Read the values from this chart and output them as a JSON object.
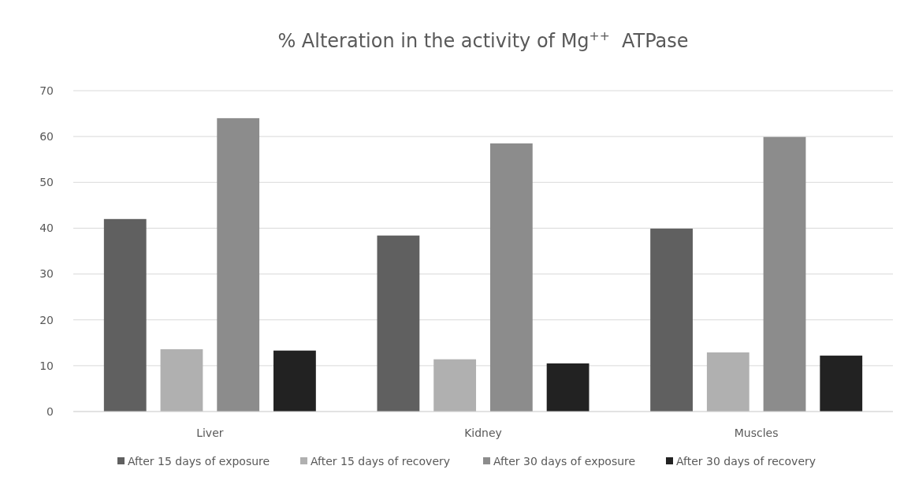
{
  "chart_data": {
    "type": "bar",
    "title": "% Alteration in the activity of Mg$^{++}$  ATPase",
    "categories": [
      "Liver",
      "Kidney",
      "Muscles"
    ],
    "series": [
      {
        "name": "After 15 days of exposure",
        "color": "#606060",
        "values": [
          42,
          38.4,
          39.9
        ]
      },
      {
        "name": "After 15 days of recovery",
        "color": "#b0b0b0",
        "values": [
          13.6,
          11.4,
          12.9
        ]
      },
      {
        "name": "After 30 days of exposure",
        "color": "#8c8c8c",
        "values": [
          64,
          58.5,
          59.9
        ]
      },
      {
        "name": "After 30 days of recovery",
        "color": "#222222",
        "values": [
          13.3,
          10.5,
          12.2
        ]
      }
    ],
    "ylim": [
      0,
      70
    ],
    "yticks": [
      0,
      10,
      20,
      30,
      40,
      50,
      60,
      70
    ],
    "grid": "y",
    "legend": "bottom"
  }
}
